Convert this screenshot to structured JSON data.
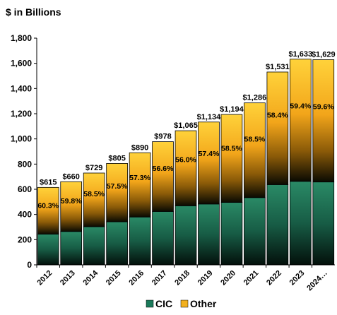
{
  "chart_data": {
    "type": "bar",
    "stacked": true,
    "unit_label": "$ in Billions",
    "categories": [
      "2012",
      "2013",
      "2014",
      "2015",
      "2016",
      "2017",
      "2018",
      "2019",
      "2020",
      "2021",
      "2022",
      "2023",
      "2024…"
    ],
    "series": [
      {
        "name": "CIC",
        "color": "#1a7a5a",
        "values": [
          244,
          265,
          303,
          342,
          380,
          424,
          469,
          483,
          496,
          534,
          637,
          663,
          658
        ]
      },
      {
        "name": "Other",
        "color": "#f2b01e",
        "values": [
          371,
          395,
          426,
          463,
          510,
          554,
          596,
          651,
          698,
          752,
          894,
          970,
          971
        ]
      }
    ],
    "totals": [
      "$615",
      "$660",
      "$729",
      "$805",
      "$890",
      "$978",
      "$1,065",
      "$1,134",
      "$1,194",
      "$1,286",
      "$1,531",
      "$1,633",
      "$1,629"
    ],
    "other_share_labels": [
      "60.3%",
      "59.8%",
      "58.5%",
      "57.5%",
      "57.3%",
      "56.6%",
      "56.0%",
      "57.4%",
      "58.5%",
      "58.5%",
      "58.4%",
      "59.4%",
      "59.6%"
    ],
    "ylim": [
      0,
      1800
    ],
    "y_ticks": [
      "0",
      "200",
      "400",
      "600",
      "800",
      "1,000",
      "1,200",
      "1,400",
      "1,600",
      "1,800"
    ],
    "grid": false,
    "legend_position": "bottom-center"
  }
}
